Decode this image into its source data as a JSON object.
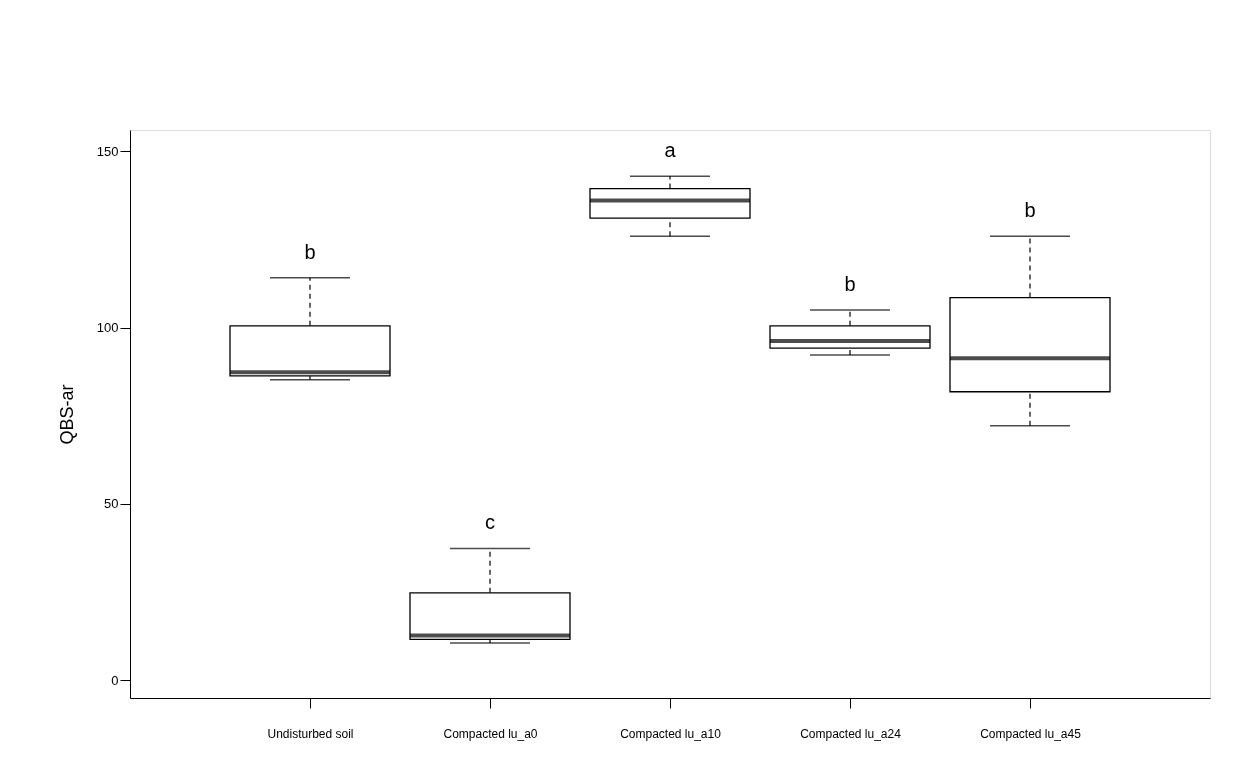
{
  "chart_data": {
    "type": "box",
    "ylabel": "QBS-ar",
    "categories": [
      "Undisturbed soil",
      "Compacted lu_a0",
      "Compacted lu_a10",
      "Compacted lu_a24",
      "Compacted lu_a45"
    ],
    "boxes": [
      {
        "low": 85.2,
        "q1": 86.3,
        "median": 87.3,
        "q3": 100.5,
        "high": 114.1
      },
      {
        "low": 10.6,
        "q1": 11.6,
        "median": 12.7,
        "q3": 24.8,
        "high": 37.4
      },
      {
        "low": 125.9,
        "q1": 131.0,
        "median": 136.0,
        "q3": 139.4,
        "high": 142.9
      },
      {
        "low": 92.2,
        "q1": 94.2,
        "median": 96.2,
        "q3": 100.5,
        "high": 105.0
      },
      {
        "low": 72.2,
        "q1": 81.8,
        "median": 91.3,
        "q3": 108.5,
        "high": 125.9
      }
    ],
    "ylim": [
      -5,
      156
    ],
    "yticks": [
      0,
      50,
      100,
      150
    ],
    "grid": false,
    "annotations": [
      "b",
      "c",
      "a",
      "b",
      "b"
    ]
  }
}
